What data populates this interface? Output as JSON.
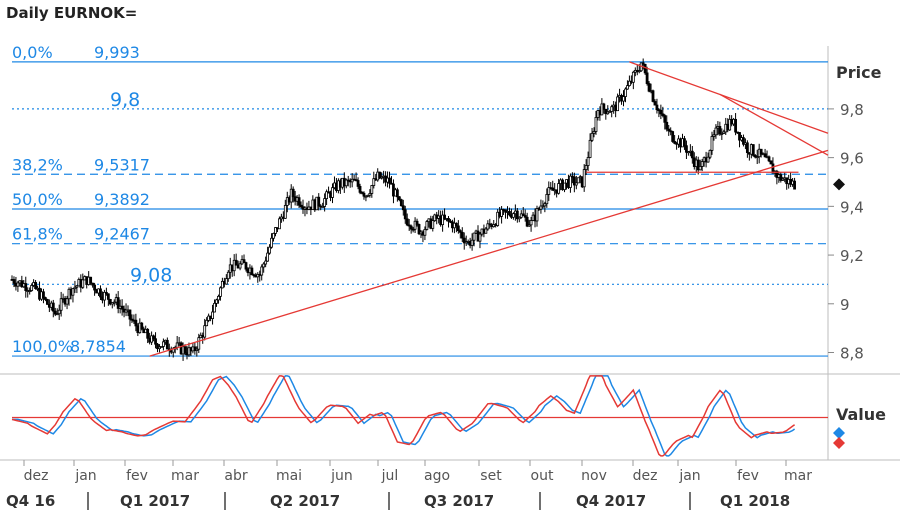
{
  "title": "Daily EURNOK=",
  "colors": {
    "fib_line": "#1e88e5",
    "fib_text": "#1e88e5",
    "trend": "#e53935",
    "candle": "#000000",
    "osc_blue": "#1e88e5",
    "osc_red": "#e53935",
    "axis_text": "#555555"
  },
  "chart_data": {
    "type": "candlestick",
    "title": "Daily EURNOK=",
    "price_axis": {
      "label": "Price",
      "range": [
        8.72,
        10.05
      ],
      "ticks": [
        {
          "value": 9.8,
          "label": "9,8"
        },
        {
          "value": 9.6,
          "label": "9,6"
        },
        {
          "value": 9.4,
          "label": "9,4"
        },
        {
          "value": 9.2,
          "label": "9,2"
        },
        {
          "value": 9.0,
          "label": "9"
        },
        {
          "value": 8.8,
          "label": "8,8"
        }
      ],
      "last_value": 9.49
    },
    "fib_levels": [
      {
        "value": 9.993,
        "pct": "0,0%",
        "price_label": "9,993",
        "style": "solid"
      },
      {
        "value": 9.5317,
        "pct": "38,2%",
        "price_label": "9,5317",
        "style": "dashed"
      },
      {
        "value": 9.3892,
        "pct": "50,0%",
        "price_label": "9,3892",
        "style": "solid"
      },
      {
        "value": 9.2467,
        "pct": "61,8%",
        "price_label": "9,2467",
        "style": "dashed"
      },
      {
        "value": 8.7854,
        "pct": "100,0%",
        "price_label": "8,7854",
        "style": "solid"
      }
    ],
    "marked_levels": [
      {
        "value": 9.8,
        "label": "9,8"
      },
      {
        "value": 9.08,
        "label": "9,08"
      }
    ],
    "x_axis": {
      "months": [
        "dez",
        "jan",
        "fev",
        "mar",
        "abr",
        "mai",
        "jun",
        "jul",
        "ago",
        "set",
        "out",
        "nov",
        "dez",
        "jan",
        "fev",
        "mar"
      ],
      "quarters": [
        "Q4 16",
        "Q1 2017",
        "Q2 2017",
        "Q3 2017",
        "Q4 2017",
        "Q1 2018"
      ],
      "bar_count": 330
    },
    "price_path": [
      [
        0,
        9.1
      ],
      [
        12,
        9.06
      ],
      [
        22,
        8.96
      ],
      [
        30,
        9.06
      ],
      [
        38,
        9.1
      ],
      [
        46,
        9.04
      ],
      [
        54,
        9.0
      ],
      [
        62,
        8.92
      ],
      [
        72,
        8.84
      ],
      [
        84,
        8.82
      ],
      [
        92,
        8.8
      ],
      [
        100,
        8.93
      ],
      [
        110,
        9.15
      ],
      [
        118,
        9.16
      ],
      [
        126,
        9.12
      ],
      [
        134,
        9.3
      ],
      [
        142,
        9.45
      ],
      [
        150,
        9.4
      ],
      [
        158,
        9.42
      ],
      [
        166,
        9.49
      ],
      [
        174,
        9.5
      ],
      [
        180,
        9.45
      ],
      [
        186,
        9.52
      ],
      [
        192,
        9.5
      ],
      [
        200,
        9.35
      ],
      [
        208,
        9.3
      ],
      [
        216,
        9.35
      ],
      [
        224,
        9.33
      ],
      [
        232,
        9.25
      ],
      [
        240,
        9.3
      ],
      [
        248,
        9.36
      ],
      [
        256,
        9.38
      ],
      [
        264,
        9.33
      ],
      [
        272,
        9.45
      ],
      [
        282,
        9.5
      ],
      [
        290,
        9.5
      ],
      [
        298,
        9.8
      ],
      [
        306,
        9.8
      ],
      [
        314,
        9.9
      ],
      [
        320,
        9.99
      ],
      [
        326,
        9.85
      ],
      [
        334,
        9.7
      ],
      [
        342,
        9.65
      ],
      [
        350,
        9.55
      ],
      [
        358,
        9.7
      ],
      [
        366,
        9.75
      ],
      [
        374,
        9.64
      ],
      [
        382,
        9.6
      ],
      [
        390,
        9.52
      ],
      [
        398,
        9.49
      ]
    ],
    "price_path_unit_note": "",
    "trendlines": [
      {
        "from": [
          70,
          8.7854
        ],
        "to": [
          415,
          9.63
        ]
      },
      {
        "from": [
          314,
          9.993
        ],
        "to": [
          415,
          9.7
        ]
      },
      {
        "from": [
          360,
          9.86
        ],
        "to": [
          415,
          9.61
        ]
      },
      {
        "from": [
          292,
          9.54
        ],
        "to": [
          400,
          9.54
        ]
      }
    ],
    "oscillator": {
      "label": "Value",
      "reference_line": 0,
      "series": [
        {
          "name": "",
          "color": "#1e88e5"
        },
        {
          "name": "",
          "color": "#e53935"
        }
      ]
    }
  }
}
